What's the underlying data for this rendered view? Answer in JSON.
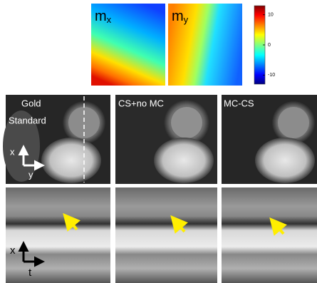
{
  "maps": [
    {
      "symbol": "m",
      "subscript": "x"
    },
    {
      "symbol": "m",
      "subscript": "y"
    }
  ],
  "colorbar": {
    "lim": [
      -13,
      13
    ],
    "ticks": [
      10,
      0,
      -10
    ]
  },
  "panels": [
    {
      "label_lines": [
        "Gold",
        "Standard"
      ]
    },
    {
      "label_lines": [
        "CS+no MC"
      ]
    },
    {
      "label_lines": [
        "MC-CS"
      ]
    }
  ],
  "axes": {
    "top": {
      "vertical": "x",
      "horizontal": "y"
    },
    "bottom": {
      "vertical": "x",
      "horizontal": "t"
    }
  }
}
